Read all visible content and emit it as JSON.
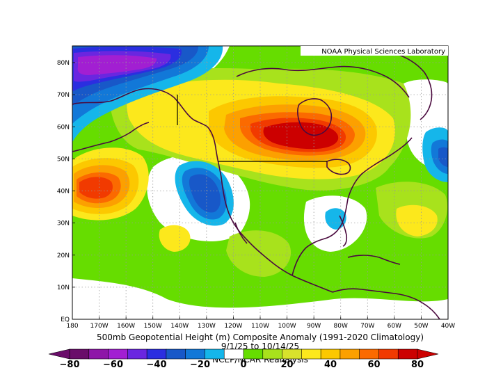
{
  "credit": "NOAA Physical Sciences Laboratory",
  "title_line1": "500mb Geopotential Height (m) Composite Anomaly (1991-2020 Climatology)",
  "title_line2": "9/1/25  to 10/14/25",
  "title_line3": "NCEP/NCAR Reanalysis",
  "lat_labels": [
    "80N",
    "70N",
    "60N",
    "50N",
    "40N",
    "30N",
    "20N",
    "10N",
    "EQ"
  ],
  "lon_labels": [
    "180",
    "170W",
    "160W",
    "150W",
    "140W",
    "130W",
    "120W",
    "110W",
    "100W",
    "90W",
    "80W",
    "70W",
    "60W",
    "50W",
    "40W"
  ],
  "colorbar": {
    "labels": [
      "-80",
      "-60",
      "-40",
      "-20",
      "0",
      "20",
      "40",
      "60",
      "80"
    ],
    "colors": [
      "#6a0d6a",
      "#8e16a8",
      "#a21fd2",
      "#6a26e0",
      "#2b2ee0",
      "#1858c8",
      "#1278d8",
      "#15b6ea",
      "#ffffff",
      "#66dd00",
      "#a8e21c",
      "#d8e22c",
      "#fce81c",
      "#fcc800",
      "#fca000",
      "#fb6a00",
      "#f13a00",
      "#cc0000"
    ]
  },
  "map_colors": {
    "neutral": "#ffffff",
    "pos1": "#66dd00",
    "pos2": "#a8e21c",
    "pos3": "#fce81c",
    "pos4": "#fcc800",
    "pos5": "#fca000",
    "pos6": "#fb6a00",
    "pos7": "#f13a00",
    "pos8": "#cc0000",
    "neg1": "#15b6ea",
    "neg2": "#1278d8",
    "neg3": "#1858c8",
    "neg4": "#2b2ee0",
    "neg5": "#6a26e0",
    "neg6": "#a21fd2",
    "coast": "#4a0a3e",
    "grid": "#999999"
  }
}
